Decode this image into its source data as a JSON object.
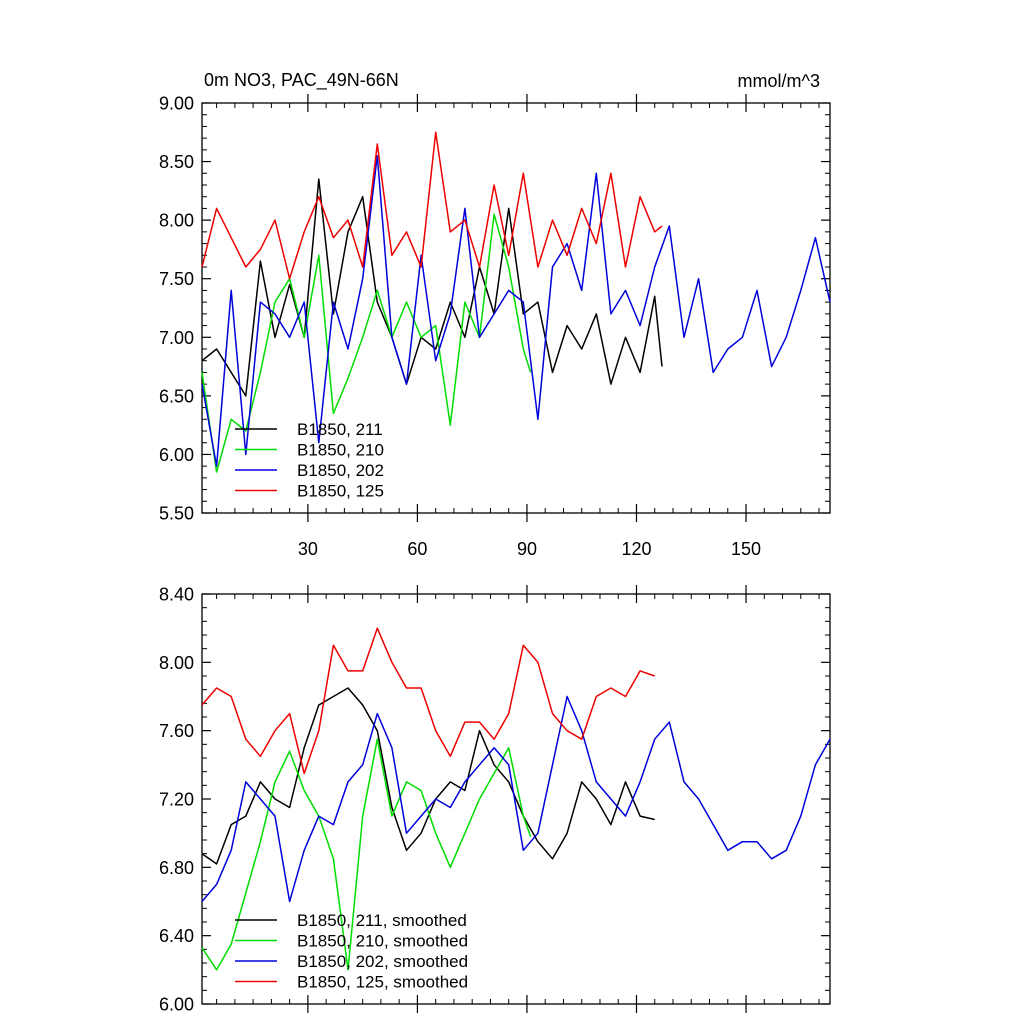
{
  "chart_data": [
    {
      "type": "line",
      "title": "0m NO3, PAC_49N-66N",
      "units": "mmol/m^3",
      "xlabel": "",
      "ylabel": "",
      "xlim": [
        1,
        173
      ],
      "ylim": [
        5.5,
        9.0
      ],
      "yticks": [
        "5.50",
        "6.00",
        "6.50",
        "7.00",
        "7.50",
        "8.00",
        "8.50",
        "9.00"
      ],
      "xticks": [
        "30",
        "60",
        "90",
        "120",
        "150"
      ],
      "legend_position": "bottom-left",
      "grid": false,
      "series": [
        {
          "name": "B1850, 211",
          "color": "#000000",
          "x": [
            1,
            5,
            9,
            13,
            17,
            21,
            25,
            29,
            33,
            37,
            41,
            45,
            49,
            53,
            57,
            61,
            65,
            69,
            73,
            77,
            81,
            85,
            89,
            93,
            97,
            101,
            105,
            109,
            113,
            117,
            121,
            125,
            127
          ],
          "values": [
            6.8,
            6.9,
            6.7,
            6.5,
            7.65,
            7.0,
            7.45,
            7.0,
            8.35,
            7.2,
            7.9,
            8.2,
            7.3,
            7.0,
            6.6,
            7.0,
            6.9,
            7.3,
            7.0,
            7.6,
            7.2,
            8.1,
            7.2,
            7.3,
            6.7,
            7.1,
            6.9,
            7.2,
            6.6,
            7.0,
            6.7,
            7.35,
            6.75
          ]
        },
        {
          "name": "B1850, 210",
          "color": "#00dd00",
          "x": [
            1,
            5,
            9,
            13,
            17,
            21,
            25,
            29,
            33,
            37,
            41,
            45,
            49,
            53,
            57,
            61,
            65,
            69,
            73,
            77,
            81,
            85,
            89,
            91
          ],
          "values": [
            6.7,
            5.85,
            6.3,
            6.2,
            6.7,
            7.3,
            7.5,
            7.0,
            7.7,
            6.35,
            6.65,
            7.0,
            7.4,
            7.0,
            7.3,
            7.0,
            7.1,
            6.25,
            7.3,
            7.0,
            8.05,
            7.6,
            6.9,
            6.7
          ]
        },
        {
          "name": "B1850, 202",
          "color": "#0000dd",
          "x": [
            1,
            5,
            9,
            13,
            17,
            21,
            25,
            29,
            33,
            37,
            41,
            45,
            49,
            53,
            57,
            61,
            65,
            69,
            73,
            77,
            81,
            85,
            89,
            93,
            97,
            101,
            105,
            109,
            113,
            117,
            121,
            125,
            129,
            133,
            137,
            141,
            145,
            149,
            153,
            157,
            161,
            165,
            169,
            173
          ],
          "values": [
            6.6,
            5.9,
            7.4,
            6.0,
            7.3,
            7.2,
            7.0,
            7.3,
            6.1,
            7.3,
            6.9,
            7.5,
            8.55,
            7.0,
            6.6,
            7.7,
            6.8,
            7.2,
            8.1,
            7.0,
            7.2,
            7.4,
            7.3,
            6.3,
            7.6,
            7.8,
            7.4,
            8.4,
            7.2,
            7.4,
            7.1,
            7.6,
            7.95,
            7.0,
            7.5,
            6.7,
            6.9,
            7.0,
            7.4,
            6.75,
            7.0,
            7.4,
            7.85,
            7.3
          ]
        },
        {
          "name": "B1850, 125",
          "color": "#ee0000",
          "x": [
            1,
            5,
            9,
            13,
            17,
            21,
            25,
            29,
            33,
            37,
            41,
            45,
            49,
            53,
            57,
            61,
            65,
            69,
            73,
            77,
            81,
            85,
            89,
            93,
            97,
            101,
            105,
            109,
            113,
            117,
            121,
            125,
            127
          ],
          "values": [
            7.6,
            8.1,
            7.85,
            7.6,
            7.75,
            8.0,
            7.5,
            7.9,
            8.2,
            7.85,
            8.0,
            7.6,
            8.65,
            7.7,
            7.9,
            7.6,
            8.75,
            7.9,
            8.0,
            7.6,
            8.3,
            7.7,
            8.4,
            7.6,
            8.0,
            7.7,
            8.1,
            7.8,
            8.4,
            7.6,
            8.2,
            7.9,
            7.95
          ]
        }
      ]
    },
    {
      "type": "line",
      "title": "",
      "xlabel": "",
      "ylabel": "",
      "xlim": [
        1,
        173
      ],
      "ylim": [
        6.0,
        8.4
      ],
      "yticks": [
        "6.00",
        "6.40",
        "6.80",
        "7.20",
        "7.60",
        "8.00",
        "8.40"
      ],
      "xticks": [],
      "legend_position": "bottom-left",
      "grid": false,
      "series": [
        {
          "name": "B1850, 211, smoothed",
          "color": "#000000",
          "x": [
            1,
            5,
            9,
            13,
            17,
            21,
            25,
            29,
            33,
            37,
            41,
            45,
            49,
            53,
            57,
            61,
            65,
            69,
            73,
            77,
            81,
            85,
            89,
            93,
            97,
            101,
            105,
            109,
            113,
            117,
            121,
            125
          ],
          "values": [
            6.88,
            6.82,
            7.05,
            7.1,
            7.3,
            7.2,
            7.15,
            7.5,
            7.75,
            7.8,
            7.85,
            7.75,
            7.6,
            7.15,
            6.9,
            7.0,
            7.2,
            7.3,
            7.25,
            7.6,
            7.4,
            7.3,
            7.1,
            6.95,
            6.85,
            7.0,
            7.3,
            7.2,
            7.05,
            7.3,
            7.1,
            7.08
          ]
        },
        {
          "name": "B1850, 210, smoothed",
          "color": "#00dd00",
          "x": [
            1,
            5,
            9,
            13,
            17,
            21,
            25,
            29,
            33,
            37,
            41,
            45,
            49,
            53,
            57,
            61,
            65,
            69,
            73,
            77,
            81,
            85,
            89,
            91
          ],
          "values": [
            6.33,
            6.2,
            6.35,
            6.65,
            6.95,
            7.3,
            7.48,
            7.25,
            7.1,
            6.85,
            6.2,
            7.1,
            7.55,
            7.1,
            7.3,
            7.25,
            7.0,
            6.8,
            7.0,
            7.2,
            7.35,
            7.5,
            7.1,
            6.98
          ]
        },
        {
          "name": "B1850, 202, smoothed",
          "color": "#0000dd",
          "x": [
            1,
            5,
            9,
            13,
            17,
            21,
            25,
            29,
            33,
            37,
            41,
            45,
            49,
            53,
            57,
            61,
            65,
            69,
            73,
            77,
            81,
            85,
            89,
            93,
            97,
            101,
            105,
            109,
            113,
            117,
            121,
            125,
            129,
            133,
            137,
            141,
            145,
            149,
            153,
            157,
            161,
            165,
            169,
            173
          ],
          "values": [
            6.6,
            6.7,
            6.9,
            7.3,
            7.2,
            7.1,
            6.6,
            6.9,
            7.1,
            7.05,
            7.3,
            7.4,
            7.7,
            7.5,
            7.0,
            7.1,
            7.2,
            7.15,
            7.3,
            7.4,
            7.5,
            7.4,
            6.9,
            7.0,
            7.4,
            7.8,
            7.6,
            7.3,
            7.2,
            7.1,
            7.3,
            7.55,
            7.65,
            7.3,
            7.2,
            7.05,
            6.9,
            6.95,
            6.95,
            6.85,
            6.9,
            7.1,
            7.4,
            7.55
          ]
        },
        {
          "name": "B1850, 125, smoothed",
          "color": "#ee0000",
          "x": [
            1,
            5,
            9,
            13,
            17,
            21,
            25,
            29,
            33,
            37,
            41,
            45,
            49,
            53,
            57,
            61,
            65,
            69,
            73,
            77,
            81,
            85,
            89,
            93,
            97,
            101,
            105,
            109,
            113,
            117,
            121,
            125
          ],
          "values": [
            7.75,
            7.85,
            7.8,
            7.55,
            7.45,
            7.6,
            7.7,
            7.35,
            7.6,
            8.1,
            7.95,
            7.95,
            8.2,
            8.0,
            7.85,
            7.85,
            7.6,
            7.45,
            7.65,
            7.65,
            7.55,
            7.7,
            8.1,
            8.0,
            7.7,
            7.6,
            7.55,
            7.8,
            7.85,
            7.8,
            7.95,
            7.92
          ]
        }
      ]
    }
  ]
}
